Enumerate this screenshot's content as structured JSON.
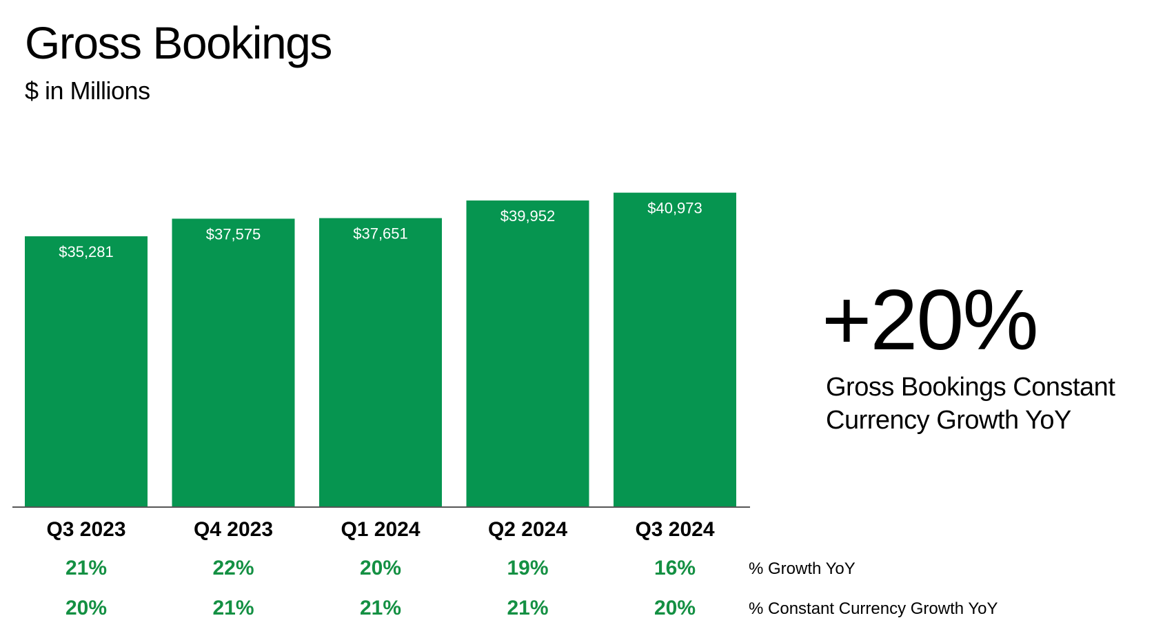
{
  "page": {
    "title": "Gross Bookings",
    "subtitle": "$ in Millions"
  },
  "chart_data": {
    "type": "bar",
    "categories": [
      "Q3 2023",
      "Q4 2023",
      "Q1 2024",
      "Q2 2024",
      "Q3 2024"
    ],
    "values": [
      35281,
      37575,
      37651,
      39952,
      40973
    ],
    "value_labels": [
      "$35,281",
      "$37,575",
      "$37,651",
      "$39,952",
      "$40,973"
    ],
    "bar_color": "#069550",
    "label_color": "#ffffff",
    "ylim": [
      0,
      44000
    ],
    "grid": false,
    "legend": "none"
  },
  "growth_rows": [
    {
      "label": "% Growth YoY",
      "values": [
        "21%",
        "22%",
        "20%",
        "19%",
        "16%"
      ]
    },
    {
      "label": "% Constant Currency Growth YoY",
      "values": [
        "20%",
        "21%",
        "21%",
        "21%",
        "20%"
      ]
    }
  ],
  "highlight": {
    "value": "+20%",
    "caption": "Gross Bookings Constant Currency Growth YoY"
  },
  "colors": {
    "accent_green": "#069550",
    "percent_text": "#149043",
    "axis_line": "#555555"
  }
}
